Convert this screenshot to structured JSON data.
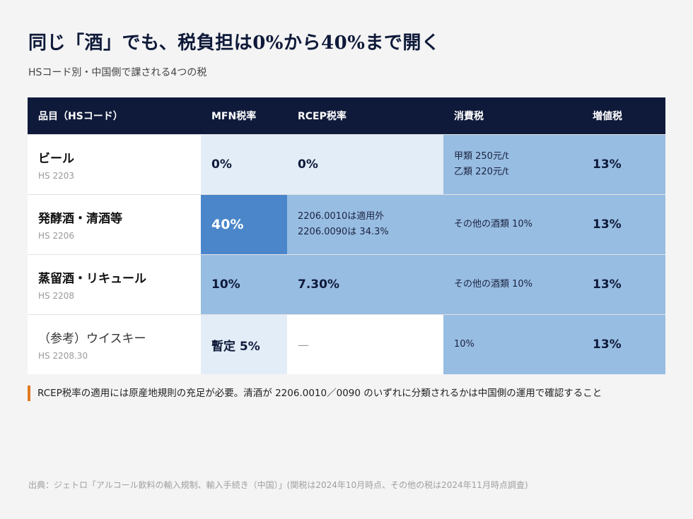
{
  "title": "同じ「酒」でも、税負担は0%から40%まで開く",
  "subtitle": "HSコード別・中国側で課される4つの税",
  "table": {
    "headers": [
      "品目（HSコード）",
      "MFN税率",
      "RCEP税率",
      "消費税",
      "増値税"
    ],
    "rows": [
      {
        "name": "ビール",
        "hs": "HS 2203",
        "mfn": "0%",
        "rcep": "0%",
        "consumption": [
          "甲類 250元/t",
          "乙類 220元/t"
        ],
        "vat": "13%"
      },
      {
        "name": "発酵酒・清酒等",
        "hs": "HS 2206",
        "mfn": "40%",
        "rcep": [
          "2206.0010は適用外",
          "2206.0090は 34.3%"
        ],
        "consumption": [
          "その他の酒類 10%"
        ],
        "vat": "13%"
      },
      {
        "name": "蒸留酒・リキュール",
        "hs": "HS 2208",
        "mfn": "10%",
        "rcep": "7.30%",
        "consumption": [
          "その他の酒類 10%"
        ],
        "vat": "13%"
      },
      {
        "name": "（参考）ウイスキー",
        "hs": "HS 2208.30",
        "mfn": "暫定 5%",
        "rcep": "—",
        "consumption": [
          "10%"
        ],
        "vat": "13%"
      }
    ]
  },
  "note": "RCEP税率の適用には原産地規則の充足が必要。清酒が 2206.0010／0090 のいずれに分類されるかは中国側の運用で確認すること",
  "source": "出典：ジェトロ「アルコール飲料の輸入規制、輸入手続き（中国）」(関税は2024年10月時点、その他の税は2024年11月時点調査)",
  "colors": {
    "header_bg": "#0f1a3a",
    "cell_white": "#ffffff",
    "cell_light": "#e3edf7",
    "cell_mid": "#98bde2",
    "cell_dark": "#4a86c9",
    "note_accent": "#e07a1f"
  }
}
